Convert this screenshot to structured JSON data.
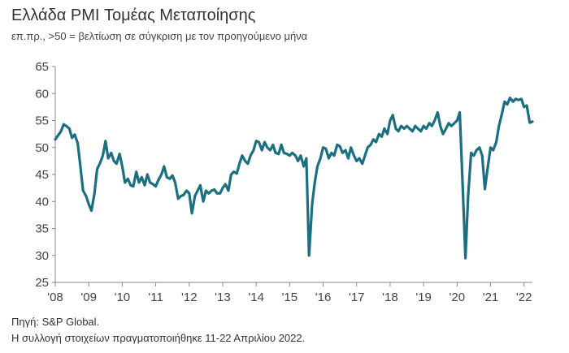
{
  "title": "Ελλάδα PMI Τομέας Μεταποίησης",
  "subtitle": "επ.πρ., >50 = βελτίωση σε σύγκριση με τον προηγούμενο μήνα",
  "source": "Πηγή: S&P Global.",
  "note": "Η συλλογή στοιχείων πραγματοποιήθηκε 11-22 Απριλίου 2022.",
  "chart_data": {
    "type": "line",
    "title": "Ελλάδα PMI Τομέας Μεταποίησης",
    "ylim": [
      25,
      65
    ],
    "xlim": [
      2008.0,
      2022.25
    ],
    "grid": false,
    "y_ticks": [
      "25",
      "30",
      "35",
      "40",
      "45",
      "50",
      "55",
      "60",
      "65"
    ],
    "x_ticks": [
      {
        "year": 2008,
        "label": "'08"
      },
      {
        "year": 2009,
        "label": "'09"
      },
      {
        "year": 2010,
        "label": "'10"
      },
      {
        "year": 2011,
        "label": "'11"
      },
      {
        "year": 2012,
        "label": "'12"
      },
      {
        "year": 2013,
        "label": "'13"
      },
      {
        "year": 2014,
        "label": "'14"
      },
      {
        "year": 2015,
        "label": "'15"
      },
      {
        "year": 2016,
        "label": "'16"
      },
      {
        "year": 2017,
        "label": "'17"
      },
      {
        "year": 2018,
        "label": "'18"
      },
      {
        "year": 2019,
        "label": "'19"
      },
      {
        "year": 2020,
        "label": "'20"
      },
      {
        "year": 2021,
        "label": "'21"
      },
      {
        "year": 2022,
        "label": "'22"
      }
    ],
    "series": [
      {
        "color": "#1b6f80",
        "points": [
          [
            2008.0,
            51.5
          ],
          [
            2008.08,
            52.2
          ],
          [
            2008.17,
            53.0
          ],
          [
            2008.25,
            54.3
          ],
          [
            2008.33,
            54.0
          ],
          [
            2008.42,
            53.5
          ],
          [
            2008.5,
            51.8
          ],
          [
            2008.58,
            52.4
          ],
          [
            2008.67,
            50.8
          ],
          [
            2008.75,
            46.5
          ],
          [
            2008.83,
            42.0
          ],
          [
            2008.92,
            41.0
          ],
          [
            2009.0,
            39.5
          ],
          [
            2009.08,
            38.3
          ],
          [
            2009.17,
            41.5
          ],
          [
            2009.25,
            46.0
          ],
          [
            2009.33,
            47.0
          ],
          [
            2009.42,
            48.5
          ],
          [
            2009.5,
            51.2
          ],
          [
            2009.58,
            48.0
          ],
          [
            2009.67,
            49.0
          ],
          [
            2009.75,
            47.5
          ],
          [
            2009.83,
            47.0
          ],
          [
            2009.92,
            48.8
          ],
          [
            2010.0,
            46.5
          ],
          [
            2010.08,
            43.5
          ],
          [
            2010.17,
            44.2
          ],
          [
            2010.25,
            43.0
          ],
          [
            2010.33,
            42.8
          ],
          [
            2010.42,
            45.5
          ],
          [
            2010.5,
            43.5
          ],
          [
            2010.58,
            44.5
          ],
          [
            2010.67,
            43.0
          ],
          [
            2010.75,
            45.0
          ],
          [
            2010.83,
            43.5
          ],
          [
            2010.92,
            43.2
          ],
          [
            2011.0,
            42.8
          ],
          [
            2011.08,
            44.0
          ],
          [
            2011.17,
            45.0
          ],
          [
            2011.25,
            46.5
          ],
          [
            2011.33,
            44.5
          ],
          [
            2011.42,
            44.2
          ],
          [
            2011.5,
            44.8
          ],
          [
            2011.58,
            43.5
          ],
          [
            2011.67,
            40.5
          ],
          [
            2011.75,
            41.0
          ],
          [
            2011.83,
            41.2
          ],
          [
            2011.92,
            42.0
          ],
          [
            2012.0,
            41.5
          ],
          [
            2012.08,
            37.8
          ],
          [
            2012.17,
            41.0
          ],
          [
            2012.25,
            42.0
          ],
          [
            2012.33,
            43.0
          ],
          [
            2012.42,
            40.0
          ],
          [
            2012.5,
            42.0
          ],
          [
            2012.58,
            41.5
          ],
          [
            2012.67,
            42.0
          ],
          [
            2012.75,
            42.2
          ],
          [
            2012.83,
            41.5
          ],
          [
            2012.92,
            41.5
          ],
          [
            2013.0,
            42.5
          ],
          [
            2013.08,
            43.2
          ],
          [
            2013.17,
            42.0
          ],
          [
            2013.25,
            45.0
          ],
          [
            2013.33,
            45.5
          ],
          [
            2013.42,
            45.2
          ],
          [
            2013.5,
            47.0
          ],
          [
            2013.58,
            48.5
          ],
          [
            2013.67,
            47.5
          ],
          [
            2013.75,
            47.0
          ],
          [
            2013.83,
            48.5
          ],
          [
            2013.92,
            49.5
          ],
          [
            2014.0,
            51.2
          ],
          [
            2014.08,
            51.0
          ],
          [
            2014.17,
            49.5
          ],
          [
            2014.25,
            51.0
          ],
          [
            2014.33,
            50.0
          ],
          [
            2014.42,
            49.5
          ],
          [
            2014.5,
            50.5
          ],
          [
            2014.58,
            49.0
          ],
          [
            2014.67,
            48.8
          ],
          [
            2014.75,
            50.5
          ],
          [
            2014.83,
            49.0
          ],
          [
            2014.92,
            48.8
          ],
          [
            2015.0,
            48.5
          ],
          [
            2015.08,
            49.0
          ],
          [
            2015.17,
            48.5
          ],
          [
            2015.25,
            47.5
          ],
          [
            2015.33,
            48.5
          ],
          [
            2015.42,
            46.5
          ],
          [
            2015.5,
            48.0
          ],
          [
            2015.58,
            30.0
          ],
          [
            2015.67,
            39.5
          ],
          [
            2015.75,
            43.5
          ],
          [
            2015.83,
            46.5
          ],
          [
            2015.92,
            48.0
          ],
          [
            2016.0,
            50.0
          ],
          [
            2016.08,
            49.8
          ],
          [
            2016.17,
            48.0
          ],
          [
            2016.25,
            49.0
          ],
          [
            2016.33,
            48.5
          ],
          [
            2016.42,
            50.5
          ],
          [
            2016.5,
            50.2
          ],
          [
            2016.58,
            49.0
          ],
          [
            2016.67,
            49.5
          ],
          [
            2016.75,
            48.0
          ],
          [
            2016.83,
            50.0
          ],
          [
            2016.92,
            48.5
          ],
          [
            2017.0,
            47.5
          ],
          [
            2017.08,
            48.0
          ],
          [
            2017.17,
            47.0
          ],
          [
            2017.25,
            48.5
          ],
          [
            2017.33,
            50.0
          ],
          [
            2017.42,
            50.5
          ],
          [
            2017.5,
            51.5
          ],
          [
            2017.58,
            51.0
          ],
          [
            2017.67,
            52.5
          ],
          [
            2017.75,
            52.0
          ],
          [
            2017.83,
            53.5
          ],
          [
            2017.92,
            52.5
          ],
          [
            2018.0,
            55.0
          ],
          [
            2018.08,
            56.0
          ],
          [
            2018.17,
            53.5
          ],
          [
            2018.25,
            53.0
          ],
          [
            2018.33,
            54.0
          ],
          [
            2018.42,
            53.5
          ],
          [
            2018.5,
            54.0
          ],
          [
            2018.58,
            53.5
          ],
          [
            2018.67,
            53.0
          ],
          [
            2018.75,
            54.0
          ],
          [
            2018.83,
            53.5
          ],
          [
            2018.92,
            53.0
          ],
          [
            2019.0,
            54.0
          ],
          [
            2019.08,
            53.5
          ],
          [
            2019.17,
            54.5
          ],
          [
            2019.25,
            54.0
          ],
          [
            2019.33,
            55.0
          ],
          [
            2019.42,
            56.5
          ],
          [
            2019.5,
            54.0
          ],
          [
            2019.58,
            52.5
          ],
          [
            2019.67,
            53.5
          ],
          [
            2019.75,
            54.5
          ],
          [
            2019.83,
            54.0
          ],
          [
            2019.92,
            54.5
          ],
          [
            2020.0,
            55.0
          ],
          [
            2020.08,
            56.5
          ],
          [
            2020.17,
            42.5
          ],
          [
            2020.25,
            29.5
          ],
          [
            2020.33,
            41.0
          ],
          [
            2020.42,
            49.0
          ],
          [
            2020.5,
            48.5
          ],
          [
            2020.58,
            49.5
          ],
          [
            2020.67,
            50.0
          ],
          [
            2020.75,
            48.5
          ],
          [
            2020.83,
            42.3
          ],
          [
            2020.92,
            46.5
          ],
          [
            2021.0,
            50.0
          ],
          [
            2021.08,
            49.5
          ],
          [
            2021.17,
            51.0
          ],
          [
            2021.25,
            54.0
          ],
          [
            2021.33,
            56.0
          ],
          [
            2021.42,
            58.5
          ],
          [
            2021.5,
            58.0
          ],
          [
            2021.58,
            59.2
          ],
          [
            2021.67,
            58.5
          ],
          [
            2021.75,
            59.0
          ],
          [
            2021.83,
            58.8
          ],
          [
            2021.92,
            59.0
          ],
          [
            2022.0,
            57.5
          ],
          [
            2022.08,
            57.8
          ],
          [
            2022.17,
            54.6
          ],
          [
            2022.25,
            54.8
          ]
        ]
      }
    ]
  }
}
